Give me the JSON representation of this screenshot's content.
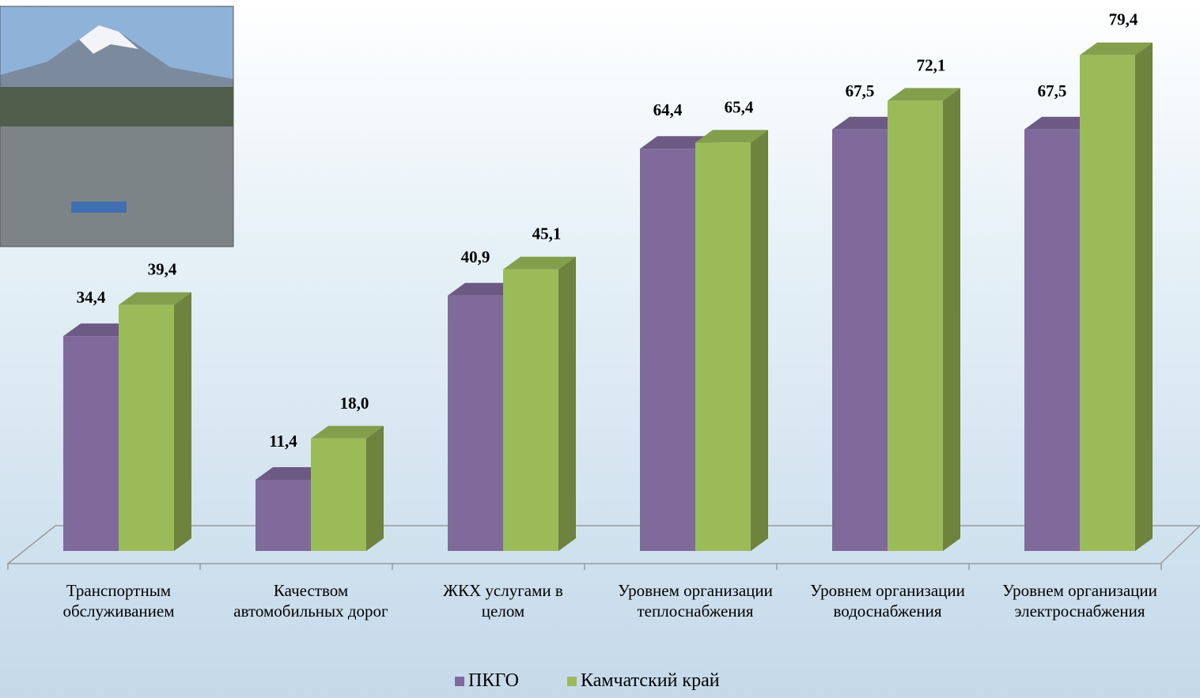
{
  "chart_data": {
    "type": "bar3d",
    "categories": [
      "Транспортным обслуживанием",
      "Качеством автомобильных дорог",
      "ЖКХ услугами в целом",
      "Уровнем организации теплоснабжения",
      "Уровнем организации водоснабжения",
      "Уровнем организации электроснабжения"
    ],
    "series": [
      {
        "name": "ПКГО",
        "color": "#7f6a9b",
        "values": [
          34.4,
          11.4,
          40.9,
          64.4,
          67.5,
          67.5
        ],
        "value_labels": [
          "34,4",
          "11,4",
          "40,9",
          "64,4",
          "67,5",
          "67,5"
        ]
      },
      {
        "name": "Камчатский край",
        "color": "#9bbb59",
        "values": [
          39.4,
          18.0,
          45.1,
          65.4,
          72.1,
          79.4
        ],
        "value_labels": [
          "39,4",
          "18,0",
          "45,1",
          "65,4",
          "72,1",
          "79,4"
        ]
      }
    ]
  }
}
